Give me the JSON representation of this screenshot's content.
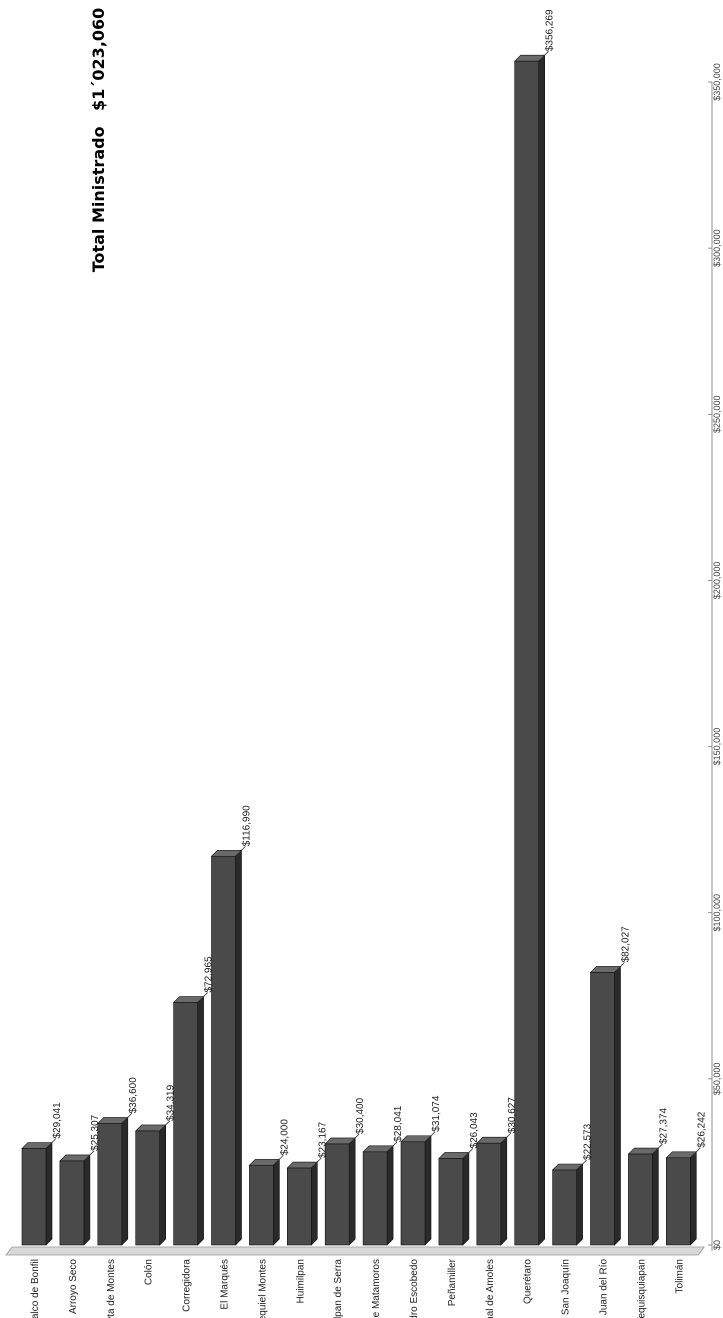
{
  "title": {
    "label": "Total Ministrado",
    "value": "$1´023,060"
  },
  "colors": {
    "bar_front": "#4a4a4a",
    "bar_side": "#2a2a2a",
    "bar_top": "#6a6a6a",
    "floor": "#d8d8d8",
    "axis": "#777777",
    "leader": "#333333"
  },
  "chart_data": {
    "type": "bar",
    "orientation": "vertical-rotated-page",
    "style": "3d",
    "title": "Total Ministrado  $1´023,060",
    "xlabel": "",
    "ylabel": "",
    "ylim": [
      0,
      350000
    ],
    "grid": false,
    "legend": "none",
    "categories": [
      "Amealco de Bonfil",
      "Arroyo Seco",
      "Cadereyta de Montes",
      "Colón",
      "Corregidora",
      "El Marqués",
      "Ezequiel Montes",
      "Huimilpan",
      "Jalpan de Serra",
      "Landa de Matamoros",
      "Pedro Escobedo",
      "Peñamiller",
      "Pinal de Amoles",
      "Querétaro",
      "San Joaquín",
      "San Juan del Río",
      "Tequisquiapan",
      "Tolimán"
    ],
    "values": [
      29041,
      25307,
      36600,
      34319,
      72965,
      116990,
      24000,
      23167,
      30400,
      28041,
      31074,
      26043,
      30627,
      356269,
      22573,
      82027,
      27374,
      26242
    ],
    "value_labels": [
      "$29,041",
      "$25,307",
      "$36,600",
      "$34,319",
      "$72,965",
      "$116,990",
      "$24,000",
      "$23,167",
      "$30,400",
      "$28,041",
      "$31,074",
      "$26,043",
      "$30,627",
      "$356,269",
      "$22,573",
      "$82,027",
      "$27,374",
      "$26,242"
    ],
    "ticks": [
      0,
      50000,
      100000,
      150000,
      200000,
      250000,
      300000,
      350000
    ],
    "tick_labels": [
      "$0",
      "$50,000",
      "$100,000",
      "$150,000",
      "$200,000",
      "$250,000",
      "$300,000",
      "$350,000"
    ]
  }
}
